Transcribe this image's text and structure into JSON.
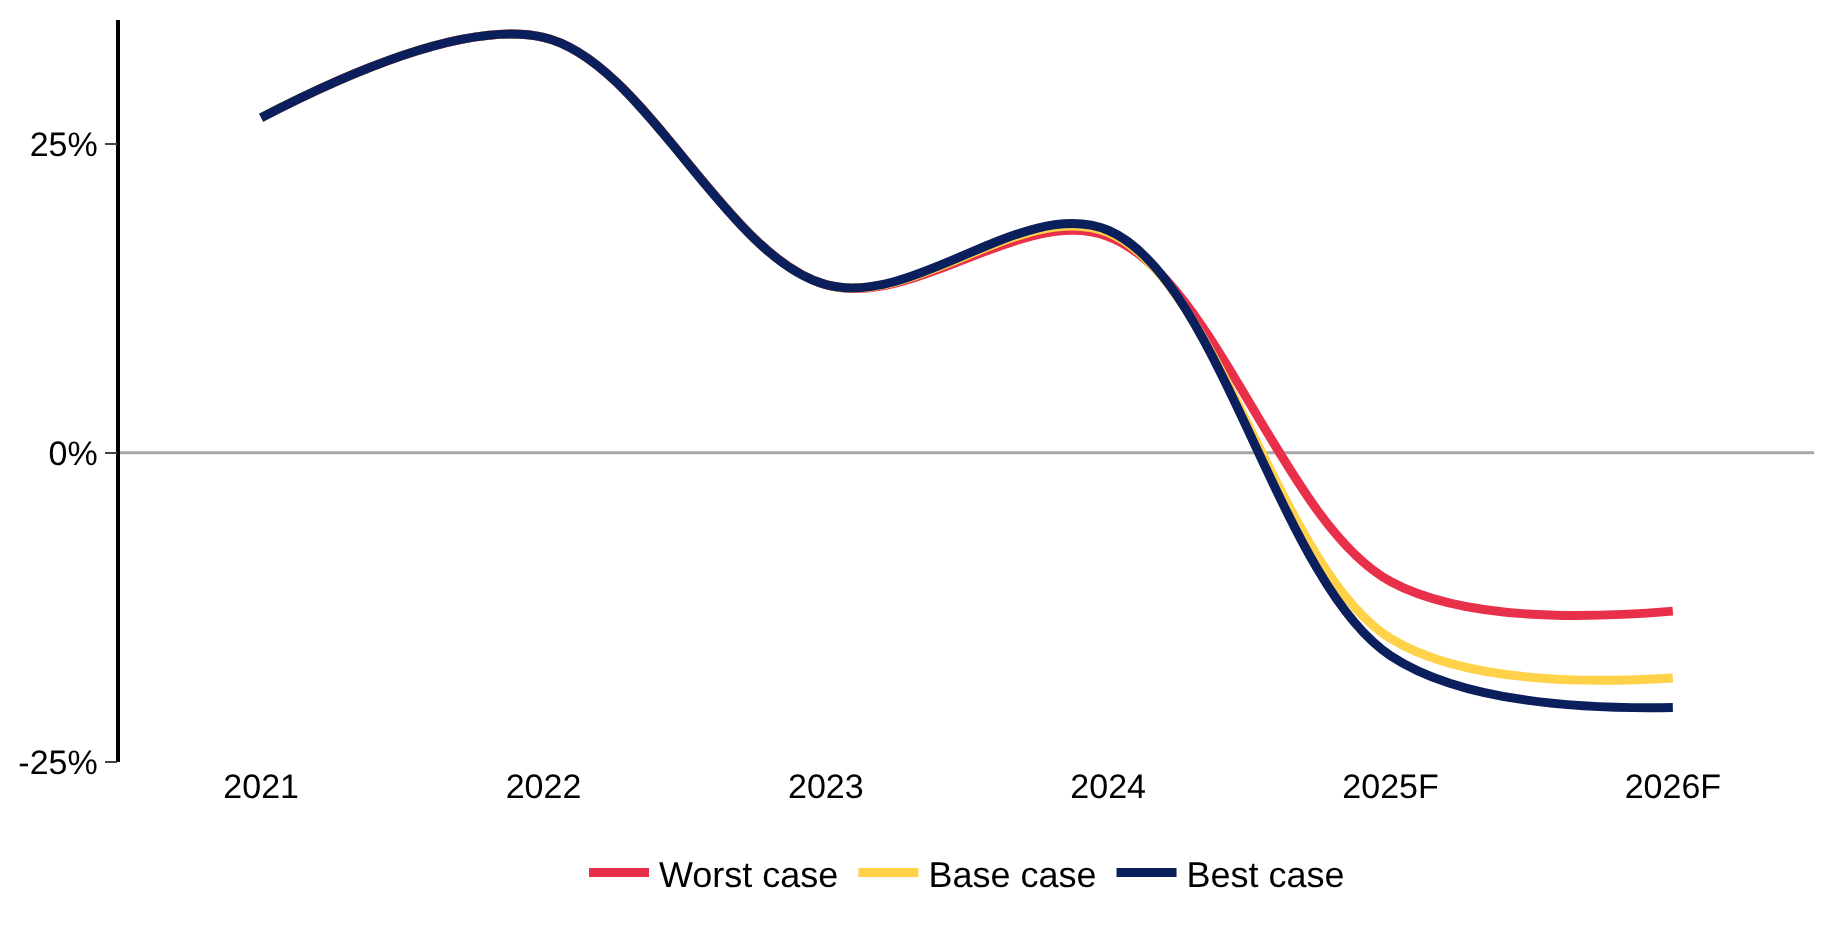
{
  "chart_data": {
    "type": "line",
    "categories": [
      "2021",
      "2022",
      "2023",
      "2024",
      "2025F",
      "2026F"
    ],
    "series": [
      {
        "name": "Worst case",
        "color": "#e8304a",
        "values": [
          27.1,
          33.6,
          13.6,
          17.5,
          -10.4,
          -12.8
        ]
      },
      {
        "name": "Base case",
        "color": "#ffd24a",
        "values": [
          27.1,
          33.6,
          13.6,
          17.8,
          -15.0,
          -18.2
        ]
      },
      {
        "name": "Best case",
        "color": "#0a1f5c",
        "values": [
          27.1,
          33.6,
          13.6,
          18.0,
          -16.4,
          -20.6
        ]
      }
    ],
    "ylim": [
      -25,
      35
    ],
    "yticks": [
      {
        "value": -25,
        "label": "-25%"
      },
      {
        "value": 0,
        "label": "0%"
      },
      {
        "value": 25,
        "label": "25%"
      }
    ],
    "ref_lines": [
      {
        "axis": "y",
        "value": 0,
        "color": "#a6a6a6"
      }
    ],
    "grid": false,
    "legend": "bottom",
    "marker": "none",
    "line_style": "solid"
  }
}
